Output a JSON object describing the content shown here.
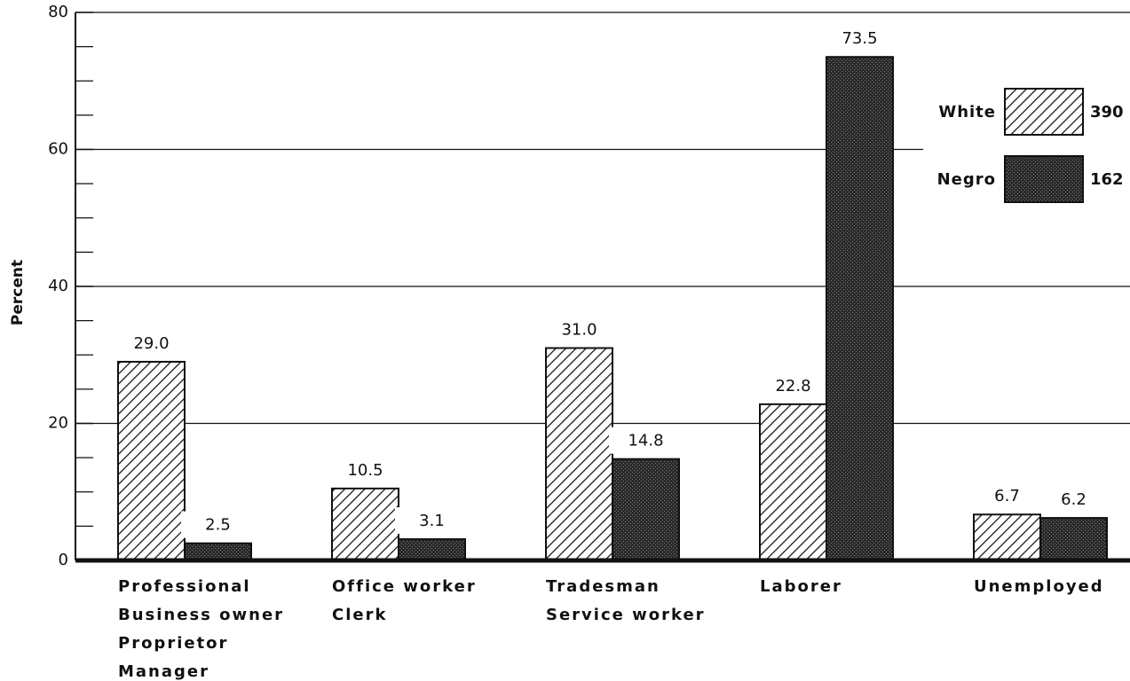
{
  "chart_data": {
    "type": "bar",
    "y_label": "Percent",
    "categories": [
      [
        "Professional",
        "Business owner",
        "Proprietor",
        "Manager"
      ],
      [
        "Office worker",
        "Clerk"
      ],
      [
        "Tradesman",
        "Service worker"
      ],
      [
        "Laborer"
      ],
      [
        "Unemployed"
      ]
    ],
    "series": [
      {
        "name": "White",
        "n": 390,
        "color": "#ffffff",
        "pattern": "hatch",
        "values": [
          29.0,
          10.5,
          31.0,
          22.8,
          6.7
        ],
        "value_labels": [
          "29.0",
          "10.5",
          "31.0",
          "22.8",
          "6.7"
        ]
      },
      {
        "name": "Negro",
        "n": 162,
        "color": "#2a2a2a",
        "pattern": "stipple",
        "values": [
          2.5,
          3.1,
          14.8,
          73.5,
          6.2
        ],
        "value_labels": [
          "2.5",
          "3.1",
          "14.8",
          "73.5",
          "6.2"
        ]
      }
    ],
    "ylim": [
      0,
      80
    ],
    "yticks": [
      0,
      20,
      40,
      60,
      80
    ],
    "minor_yticks": [
      5,
      10,
      15,
      25,
      30,
      35,
      45,
      50,
      55,
      65,
      70,
      75
    ],
    "grid": true,
    "legend": "upper right"
  }
}
